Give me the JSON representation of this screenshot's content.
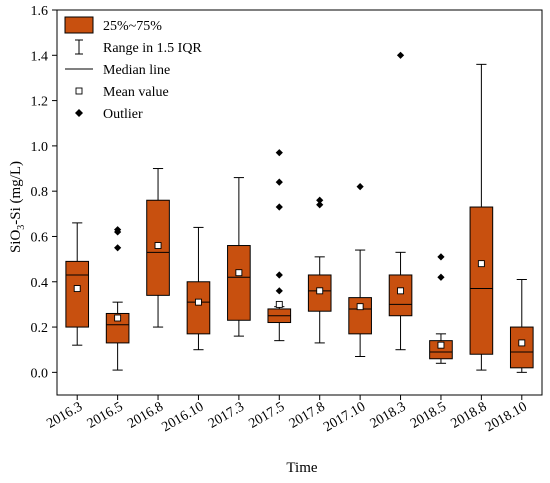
{
  "chart_data": {
    "type": "box",
    "categories": [
      "2016.3",
      "2016.5",
      "2016.8",
      "2016.10",
      "2017.3",
      "2017.5",
      "2017.8",
      "2017.10",
      "2018.3",
      "2018.5",
      "2018.8",
      "2018.10"
    ],
    "xlabel": "Time",
    "ylabel_main": "SiO",
    "ylabel_sub": "3",
    "ylabel_tail": "-Si (mg/L)",
    "ylim": [
      -0.1,
      1.6
    ],
    "yticks": [
      0.0,
      0.2,
      0.4,
      0.6,
      0.8,
      1.0,
      1.2,
      1.4,
      1.6
    ],
    "ytick_labels": [
      "0.0",
      "0.2",
      "0.4",
      "0.6",
      "0.8",
      "1.0",
      "1.2",
      "1.4",
      "1.6"
    ],
    "legend": {
      "position": "top-left",
      "items": [
        "25%~75%",
        "Range in 1.5 IQR",
        "Median line",
        "Mean value",
        "Outlier"
      ]
    },
    "box_color": "#c8500f",
    "boxes": [
      {
        "q1": 0.2,
        "q3": 0.49,
        "median": 0.43,
        "mean": 0.37,
        "whisker_low": 0.12,
        "whisker_high": 0.66,
        "outliers": []
      },
      {
        "q1": 0.13,
        "q3": 0.26,
        "median": 0.21,
        "mean": 0.24,
        "whisker_low": 0.01,
        "whisker_high": 0.31,
        "outliers": [
          0.55,
          0.62,
          0.63
        ]
      },
      {
        "q1": 0.34,
        "q3": 0.76,
        "median": 0.53,
        "mean": 0.56,
        "whisker_low": 0.2,
        "whisker_high": 0.9,
        "outliers": []
      },
      {
        "q1": 0.17,
        "q3": 0.4,
        "median": 0.31,
        "mean": 0.31,
        "whisker_low": 0.1,
        "whisker_high": 0.64,
        "outliers": []
      },
      {
        "q1": 0.23,
        "q3": 0.56,
        "median": 0.42,
        "mean": 0.44,
        "whisker_low": 0.16,
        "whisker_high": 0.86,
        "outliers": []
      },
      {
        "q1": 0.22,
        "q3": 0.28,
        "median": 0.25,
        "mean": 0.3,
        "whisker_low": 0.14,
        "whisker_high": 0.29,
        "outliers": [
          0.36,
          0.43,
          0.73,
          0.84,
          0.97
        ]
      },
      {
        "q1": 0.27,
        "q3": 0.43,
        "median": 0.36,
        "mean": 0.36,
        "whisker_low": 0.13,
        "whisker_high": 0.51,
        "outliers": [
          0.74,
          0.76
        ]
      },
      {
        "q1": 0.17,
        "q3": 0.33,
        "median": 0.28,
        "mean": 0.29,
        "whisker_low": 0.07,
        "whisker_high": 0.54,
        "outliers": [
          0.82
        ]
      },
      {
        "q1": 0.25,
        "q3": 0.43,
        "median": 0.3,
        "mean": 0.36,
        "whisker_low": 0.1,
        "whisker_high": 0.53,
        "outliers": [
          1.4
        ]
      },
      {
        "q1": 0.06,
        "q3": 0.14,
        "median": 0.09,
        "mean": 0.12,
        "whisker_low": 0.04,
        "whisker_high": 0.17,
        "outliers": [
          0.42,
          0.51
        ]
      },
      {
        "q1": 0.08,
        "q3": 0.73,
        "median": 0.37,
        "mean": 0.48,
        "whisker_low": 0.01,
        "whisker_high": 1.36,
        "outliers": []
      },
      {
        "q1": 0.02,
        "q3": 0.2,
        "median": 0.09,
        "mean": 0.13,
        "whisker_low": 0.0,
        "whisker_high": 0.41,
        "outliers": []
      }
    ]
  }
}
